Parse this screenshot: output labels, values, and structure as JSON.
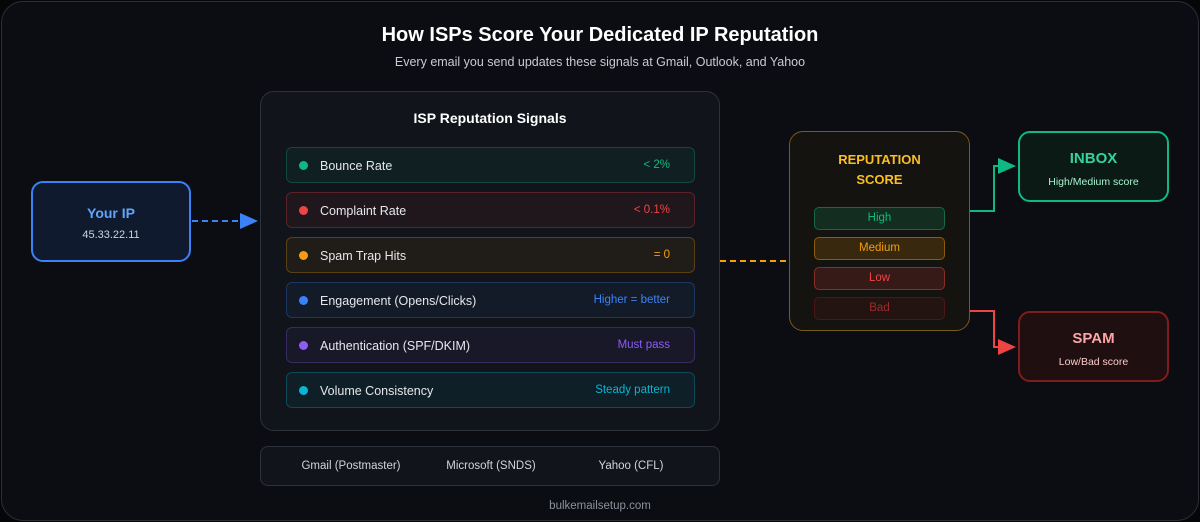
{
  "header": {
    "title": "How ISPs Score Your Dedicated IP Reputation",
    "subtitle": "Every email you send updates these signals at Gmail, Outlook, and Yahoo"
  },
  "your_ip": {
    "label": "Your IP",
    "address": "45.33.22.11"
  },
  "signals": {
    "title": "ISP Reputation Signals",
    "items": [
      {
        "label": "Bounce Rate",
        "value": "< 2%",
        "color": "#10b981"
      },
      {
        "label": "Complaint Rate",
        "value": "< 0.1%",
        "color": "#ef4444"
      },
      {
        "label": "Spam Trap Hits",
        "value": "= 0",
        "color": "#f59e0b"
      },
      {
        "label": "Engagement (Opens/Clicks)",
        "value": "Higher = better",
        "color": "#3b82f6"
      },
      {
        "label": "Authentication (SPF/DKIM)",
        "value": "Must pass",
        "color": "#8b5cf6"
      },
      {
        "label": "Volume Consistency",
        "value": "Steady pattern",
        "color": "#06b6d4"
      }
    ]
  },
  "isp_tools": [
    "Gmail (Postmaster)",
    "Microsoft (SNDS)",
    "Yahoo (CFL)"
  ],
  "score": {
    "title_line1": "REPUTATION",
    "title_line2": "SCORE",
    "levels": [
      {
        "label": "High",
        "color": "#10b981"
      },
      {
        "label": "Medium",
        "color": "#f59e0b"
      },
      {
        "label": "Low",
        "color": "#ef4444"
      },
      {
        "label": "Bad",
        "color": "#7f1d1d"
      }
    ]
  },
  "inbox": {
    "title": "INBOX",
    "subtitle": "High/Medium score"
  },
  "spam": {
    "title": "SPAM",
    "subtitle": "Low/Bad score"
  },
  "footer": "bulkemailsetup.com"
}
